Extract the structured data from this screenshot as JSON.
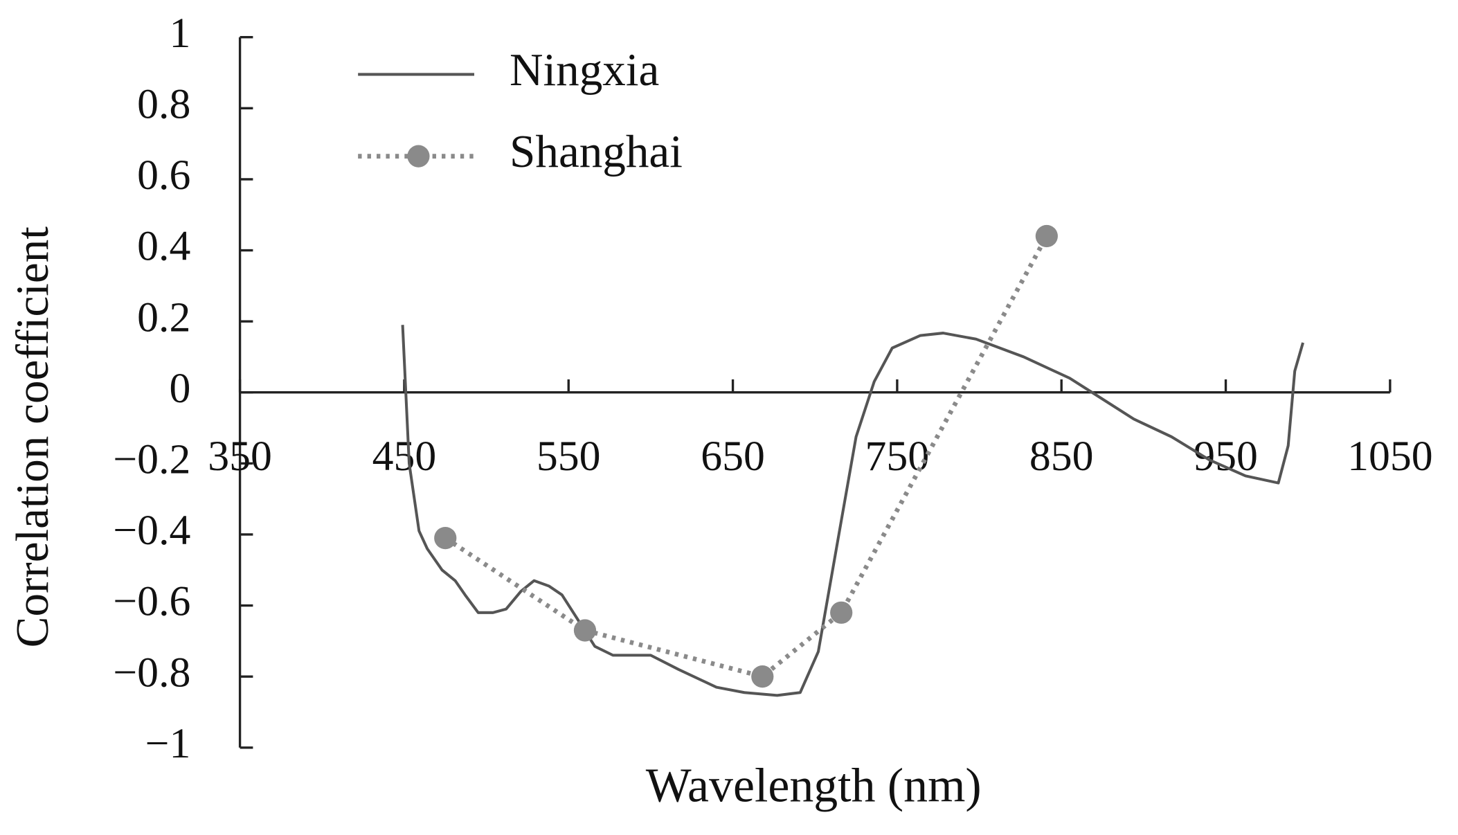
{
  "chart_data": {
    "type": "line",
    "x_label": "Wavelength (nm)",
    "y_label": "Correlation coefficient",
    "xlim": [
      350,
      1050
    ],
    "xticks": [
      350,
      450,
      550,
      650,
      750,
      850,
      950,
      1050
    ],
    "ylim": [
      -1,
      1
    ],
    "yticks": [
      {
        "value": -1,
        "label": "−1"
      },
      {
        "value": -0.8,
        "label": "−0.8"
      },
      {
        "value": -0.6,
        "label": "−0.6"
      },
      {
        "value": -0.4,
        "label": "−0.4"
      },
      {
        "value": -0.2,
        "label": "−0.2"
      },
      0,
      0.2,
      0.4,
      0.6,
      0.8,
      1
    ],
    "legend": "top-left",
    "series": [
      {
        "name": "Ningxia",
        "color": "#555555",
        "style": "solid",
        "marker": false,
        "x": [
          449,
          453,
          459,
          464,
          473,
          481,
          487,
          495,
          504,
          512,
          521,
          529,
          538,
          546,
          555,
          566,
          577,
          600,
          617,
          640,
          657,
          677,
          691,
          702,
          713,
          725,
          736,
          747,
          764,
          778,
          798,
          827,
          855,
          872,
          894,
          917,
          940,
          962,
          982,
          988,
          992,
          997
        ],
        "values": [
          0.19,
          -0.2,
          -0.39,
          -0.44,
          -0.5,
          -0.53,
          -0.57,
          -0.62,
          -0.62,
          -0.61,
          -0.56,
          -0.53,
          -0.545,
          -0.57,
          -0.635,
          -0.715,
          -0.74,
          -0.74,
          -0.78,
          -0.83,
          -0.845,
          -0.853,
          -0.845,
          -0.73,
          -0.44,
          -0.125,
          0.03,
          0.125,
          0.16,
          0.167,
          0.15,
          0.1,
          0.04,
          -0.01,
          -0.075,
          -0.125,
          -0.19,
          -0.235,
          -0.255,
          -0.15,
          0.06,
          0.14
        ]
      },
      {
        "name": "Shanghai",
        "color": "#8a8a8a",
        "style": "dotted",
        "marker": true,
        "x": [
          475,
          560,
          668,
          716,
          841
        ],
        "values": [
          -0.41,
          -0.67,
          -0.8,
          -0.62,
          0.44
        ]
      }
    ]
  }
}
